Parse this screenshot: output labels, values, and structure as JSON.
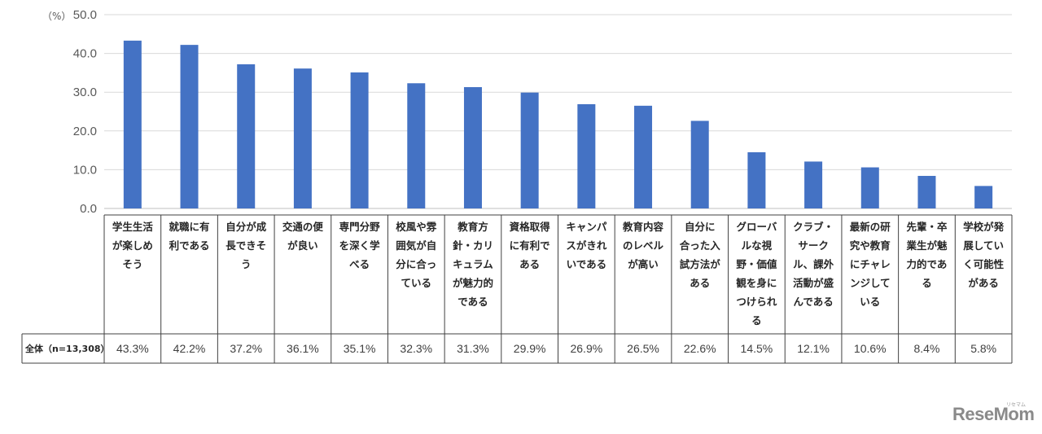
{
  "chart_data": {
    "type": "bar",
    "unit_label": "（%）",
    "ylim": [
      0,
      50
    ],
    "yticks": [
      "0.0",
      "10.0",
      "20.0",
      "30.0",
      "40.0",
      "50.0"
    ],
    "grid": true,
    "bar_color": "#4472c4",
    "categories": [
      [
        "学生生活",
        "が楽しめ",
        "そう"
      ],
      [
        "就職に有",
        "利である"
      ],
      [
        "自分が成",
        "長できそ",
        "う"
      ],
      [
        "交通の便",
        "が良い"
      ],
      [
        "専門分野",
        "を深く学",
        "べる"
      ],
      [
        "校風や雰",
        "囲気が自",
        "分に合っ",
        "ている"
      ],
      [
        "教育方",
        "針・カリ",
        "キュラム",
        "が魅力的",
        "である"
      ],
      [
        "資格取得",
        "に有利で",
        "ある"
      ],
      [
        "キャンパ",
        "スがきれ",
        "いである"
      ],
      [
        "教育内容",
        "のレベル",
        "が高い"
      ],
      [
        "自分に",
        "合った入",
        "試方法が",
        "ある"
      ],
      [
        "グローバ",
        "ルな視",
        "野・価値",
        "観を身に",
        "つけられ",
        "る"
      ],
      [
        "クラブ・",
        "サーク",
        "ル、課外",
        "活動が盛",
        "んである"
      ],
      [
        "最新の研",
        "究や教育",
        "にチャレ",
        "ンジして",
        "いる"
      ],
      [
        "先輩・卒",
        "業生が魅",
        "力的であ",
        "る"
      ],
      [
        "学校が発",
        "展してい",
        "く可能性",
        "がある"
      ]
    ],
    "series": [
      {
        "name": "全体（n=13,308）",
        "values": [
          43.3,
          42.2,
          37.2,
          36.1,
          35.1,
          32.3,
          31.3,
          29.9,
          26.9,
          26.5,
          22.6,
          14.5,
          12.1,
          10.6,
          8.4,
          5.8
        ],
        "labels": [
          "43.3%",
          "42.2%",
          "37.2%",
          "36.1%",
          "35.1%",
          "32.3%",
          "31.3%",
          "29.9%",
          "26.9%",
          "26.5%",
          "22.6%",
          "14.5%",
          "12.1%",
          "10.6%",
          "8.4%",
          "5.8%"
        ]
      }
    ]
  },
  "watermark": {
    "brand": "ReseMom",
    "sub": "リセマム"
  }
}
